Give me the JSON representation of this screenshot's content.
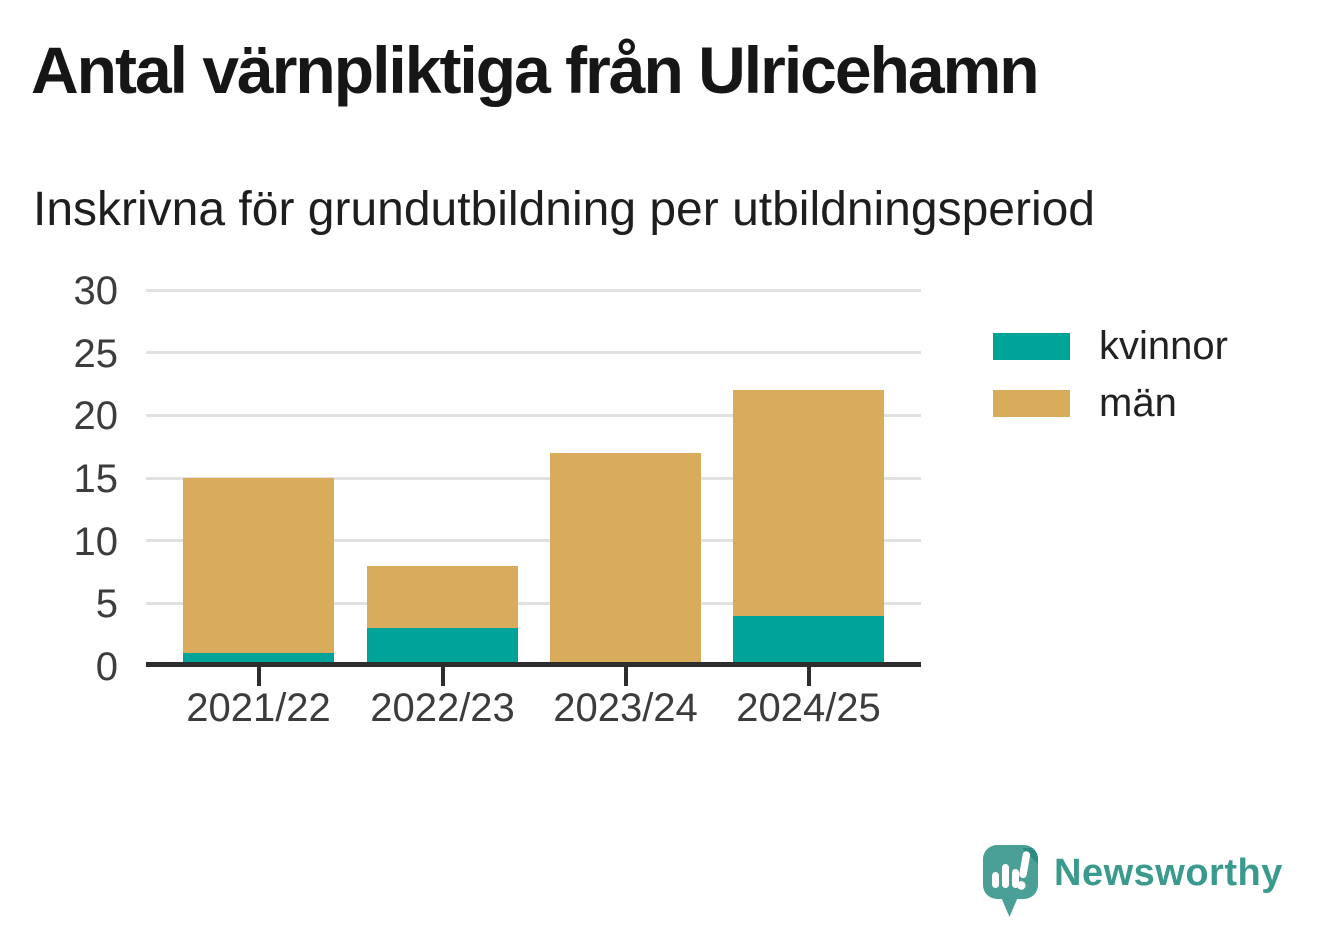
{
  "chart_data": {
    "type": "bar",
    "stacked": true,
    "title": "Antal värnpliktiga från Ulricehamn",
    "subtitle": "Inskrivna för grundutbildning per utbildningsperiod",
    "categories": [
      "2021/22",
      "2022/23",
      "2023/24",
      "2024/25"
    ],
    "series": [
      {
        "name": "kvinnor",
        "color": "#00a398",
        "values": [
          1,
          3,
          0,
          4
        ]
      },
      {
        "name": "män",
        "color": "#d8ac5a",
        "values": [
          14,
          5,
          17,
          18
        ]
      }
    ],
    "stack_totals": [
      15,
      8,
      17,
      22
    ],
    "ylim": [
      0,
      30
    ],
    "yticks": [
      0,
      5,
      10,
      15,
      20,
      25,
      30
    ],
    "grid": "horizontal",
    "legend_position": "right"
  },
  "branding": {
    "logo_text": "Newsworthy",
    "logo_color": "#3b9a8e",
    "icon_name": "newsworthy-speech-bubble-bar-chart-icon"
  },
  "colors": {
    "series_kvinnor": "#00a398",
    "series_man": "#d8ac5a",
    "gridline": "#e1e1e1",
    "axis": "#2d2d2d",
    "tick_text": "#3c3c3c",
    "title_text": "#161616"
  }
}
